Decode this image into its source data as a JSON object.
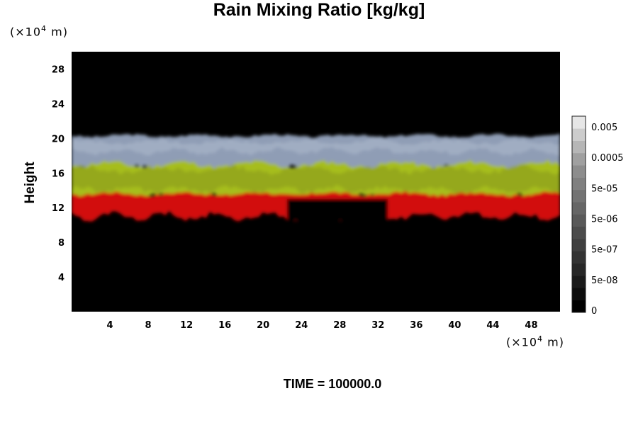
{
  "chart_data": {
    "type": "heatmap",
    "title": "Rain Mixing Ratio [kg/kg]",
    "xlabel": "",
    "ylabel": "Height",
    "x_unit_label": "(×10⁴ m)",
    "y_unit_label": "(×10⁴ m)",
    "xlim": [
      0,
      51
    ],
    "ylim": [
      0,
      30
    ],
    "xticks": [
      4,
      8,
      12,
      16,
      20,
      24,
      28,
      32,
      36,
      40,
      44,
      48
    ],
    "yticks": [
      4,
      8,
      12,
      16,
      20,
      24,
      28
    ],
    "colorbar": {
      "tick_labels": [
        "0.005",
        "0.0005",
        "5e-05",
        "5e-06",
        "5e-07",
        "5e-08",
        "0"
      ],
      "levels": 16,
      "colors": [
        "#000000",
        "#0d0d0d",
        "#1a1a1a",
        "#272727",
        "#333333",
        "#3f3f3f",
        "#4c4c4c",
        "#595959",
        "#666666",
        "#737373",
        "#808080",
        "#8d8d8d",
        "#a0a0a0",
        "#b6b6b6",
        "#cccccc",
        "#e6e6e6"
      ]
    },
    "layers": [
      {
        "name": "cloud-top band",
        "color": "#8f9db5",
        "top": 20.3,
        "bottom": 16.5
      },
      {
        "name": "yellow-green band",
        "color": "#a6bd1c",
        "top": 17.0,
        "bottom": 13.3
      },
      {
        "name": "red lower band",
        "color": "#d20d0d",
        "top": 13.6,
        "bottom": 11.0
      }
    ],
    "background_color": "#000000",
    "grid": false
  },
  "time_label": "TIME = ",
  "time_value": "100000.0"
}
